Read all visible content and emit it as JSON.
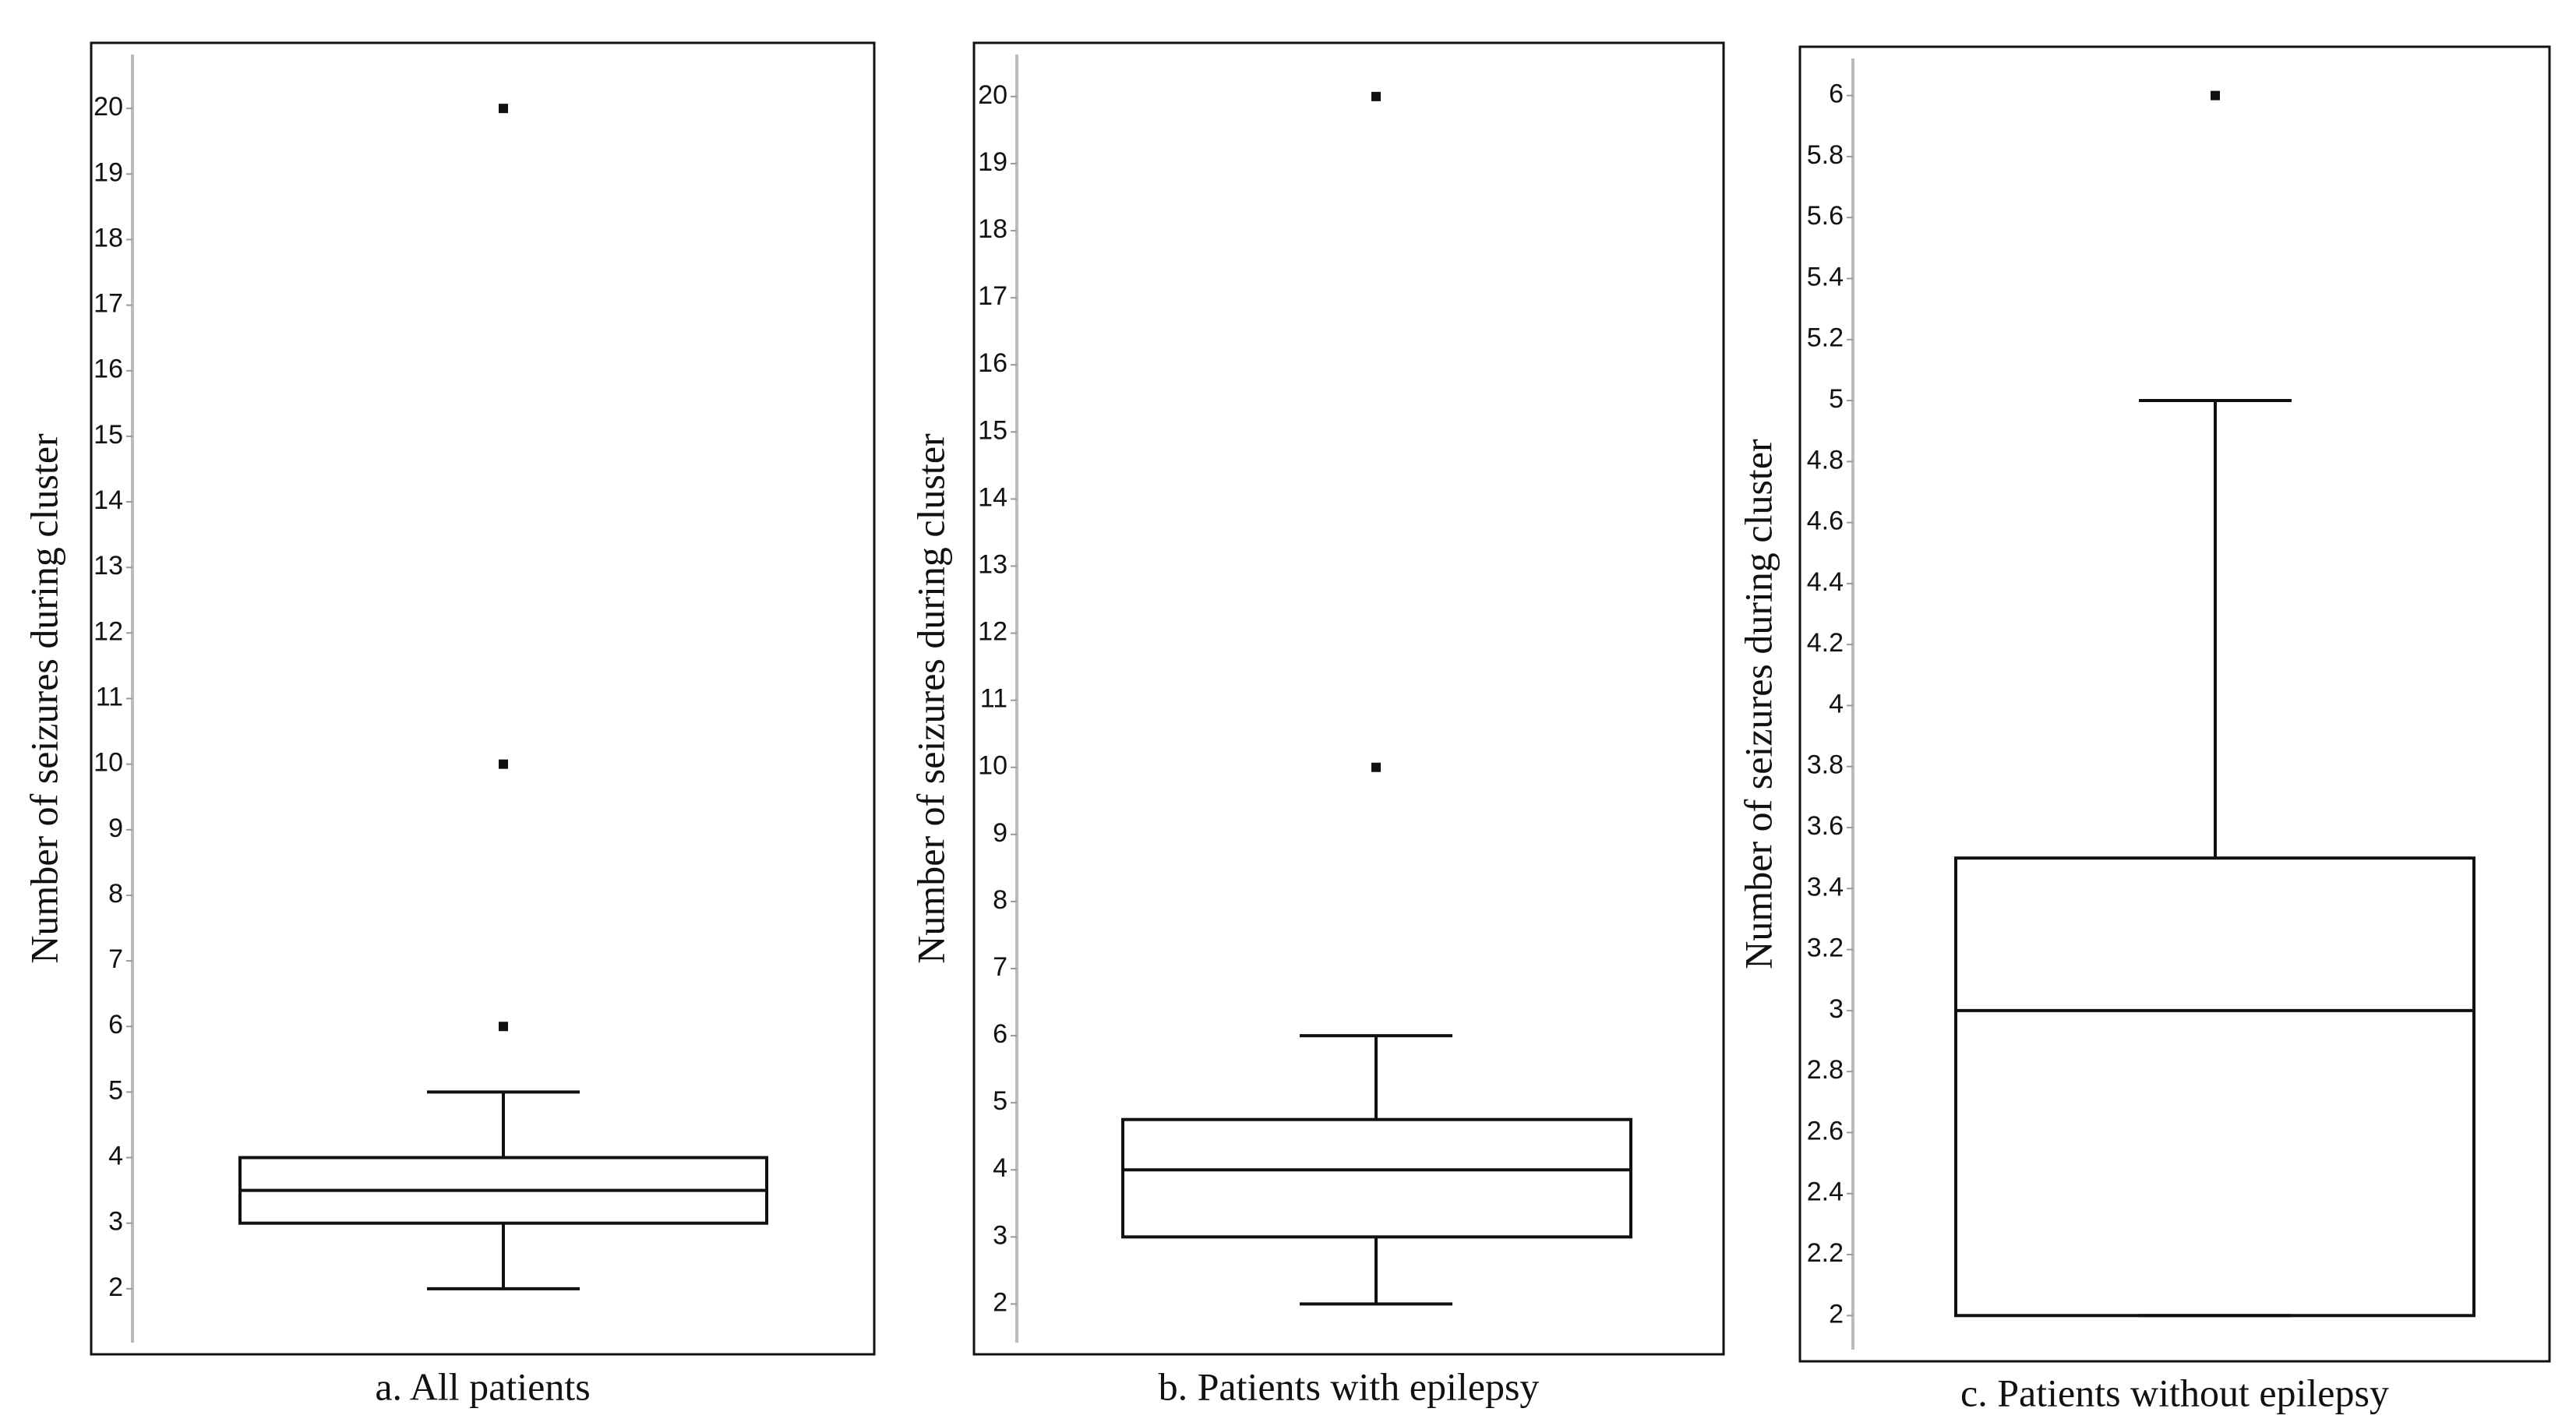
{
  "chart_data": [
    {
      "type": "box",
      "caption": "a. All patients",
      "y_label": "Number of seizures during cluster",
      "ylim": [
        1,
        21
      ],
      "yticks": [
        2,
        3,
        4,
        5,
        6,
        7,
        8,
        9,
        10,
        11,
        12,
        13,
        14,
        15,
        16,
        17,
        18,
        19,
        20
      ],
      "box": {
        "whisker_low": 2,
        "q1": 3,
        "median": 3.5,
        "q3": 4,
        "whisker_high": 5,
        "outliers": [
          6,
          10,
          20
        ]
      }
    },
    {
      "type": "box",
      "caption": "b. Patients with epilepsy",
      "y_label": "Number of seizures during cluster",
      "ylim": [
        1.25,
        20.8
      ],
      "yticks": [
        2,
        3,
        4,
        5,
        6,
        7,
        8,
        9,
        10,
        11,
        12,
        13,
        14,
        15,
        16,
        17,
        18,
        19,
        20
      ],
      "box": {
        "whisker_low": 2,
        "q1": 3,
        "median": 4,
        "q3": 4.75,
        "whisker_high": 6,
        "outliers": [
          10,
          20
        ]
      }
    },
    {
      "type": "box",
      "caption": "c. Patients without epilepsy",
      "y_label": "Number of seizures during cluster",
      "ylim": [
        1.85,
        6.16
      ],
      "yticks": [
        2,
        2.2,
        2.4,
        2.6,
        2.8,
        3,
        3.2,
        3.4,
        3.6,
        3.8,
        4,
        4.2,
        4.4,
        4.6,
        4.8,
        5,
        5.2,
        5.4,
        5.6,
        5.8,
        6
      ],
      "box": {
        "whisker_low": 2,
        "q1": 2,
        "median": 3,
        "q3": 3.5,
        "whisker_high": 5,
        "outliers": [
          6
        ]
      }
    }
  ]
}
